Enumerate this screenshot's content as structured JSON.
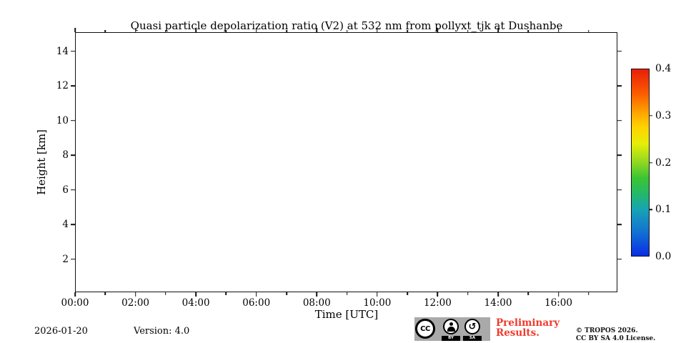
{
  "chart_data": {
    "type": "heatmap",
    "title": "Quasi particle depolarization ratio (V2) at 532 nm from pollyxt_tjk at Dushanbe",
    "xlabel": "Time [UTC]",
    "ylabel": "Height [km]",
    "x_major_ticks": [
      {
        "hours": 0,
        "label": "00:00"
      },
      {
        "hours": 2,
        "label": "02:00"
      },
      {
        "hours": 4,
        "label": "04:00"
      },
      {
        "hours": 6,
        "label": "06:00"
      },
      {
        "hours": 8,
        "label": "08:00"
      },
      {
        "hours": 10,
        "label": "10:00"
      },
      {
        "hours": 12,
        "label": "12:00"
      },
      {
        "hours": 14,
        "label": "14:00"
      },
      {
        "hours": 16,
        "label": "16:00"
      }
    ],
    "x_minor_tick_hours": [
      1,
      3,
      5,
      7,
      9,
      11,
      13,
      15,
      17
    ],
    "xlim_hours": [
      0,
      17.95
    ],
    "y_major_ticks": [
      {
        "km": 2,
        "label": "2"
      },
      {
        "km": 4,
        "label": "4"
      },
      {
        "km": 6,
        "label": "6"
      },
      {
        "km": 8,
        "label": "8"
      },
      {
        "km": 10,
        "label": "10"
      },
      {
        "km": 12,
        "label": "12"
      },
      {
        "km": 14,
        "label": "14"
      }
    ],
    "ylim_km": [
      0.1,
      15.1
    ],
    "grid": false,
    "values": [],
    "colorbar": {
      "range": [
        0.0,
        0.4
      ],
      "tick_values": [
        0.0,
        0.1,
        0.2,
        0.3,
        0.4
      ],
      "tick_labels": [
        "0.0",
        "0.1",
        "0.2",
        "0.3",
        "0.4"
      ],
      "gradient_stops": [
        {
          "pos": 0,
          "color": "#0a2de6"
        },
        {
          "pos": 13,
          "color": "#1273d2"
        },
        {
          "pos": 25,
          "color": "#17a4b4"
        },
        {
          "pos": 34,
          "color": "#25ba62"
        },
        {
          "pos": 42,
          "color": "#3cc532"
        },
        {
          "pos": 50,
          "color": "#8fd722"
        },
        {
          "pos": 60,
          "color": "#e6ee06"
        },
        {
          "pos": 69,
          "color": "#ffd200"
        },
        {
          "pos": 75,
          "color": "#ffb000"
        },
        {
          "pos": 87,
          "color": "#fb5c00"
        },
        {
          "pos": 100,
          "color": "#e81e0a"
        }
      ]
    }
  },
  "footer": {
    "date": "2026-01-20",
    "version": "Version: 4.0",
    "preliminary_line1": "Preliminary",
    "preliminary_line2": "Results.",
    "copyright_line1": "© TROPOS 2026.",
    "copyright_line2": "CC BY SA 4.0 License.",
    "license_badge": {
      "cc_label": "CC",
      "by_label": "BY",
      "sa_label": "SA",
      "sa_glyph": "↺"
    }
  },
  "colors": {
    "axis": "#111111",
    "text": "#000000",
    "preliminary_red": "#f23a2c",
    "badge_gray": "#a9a9a9",
    "plot_background": "#ffffff"
  }
}
